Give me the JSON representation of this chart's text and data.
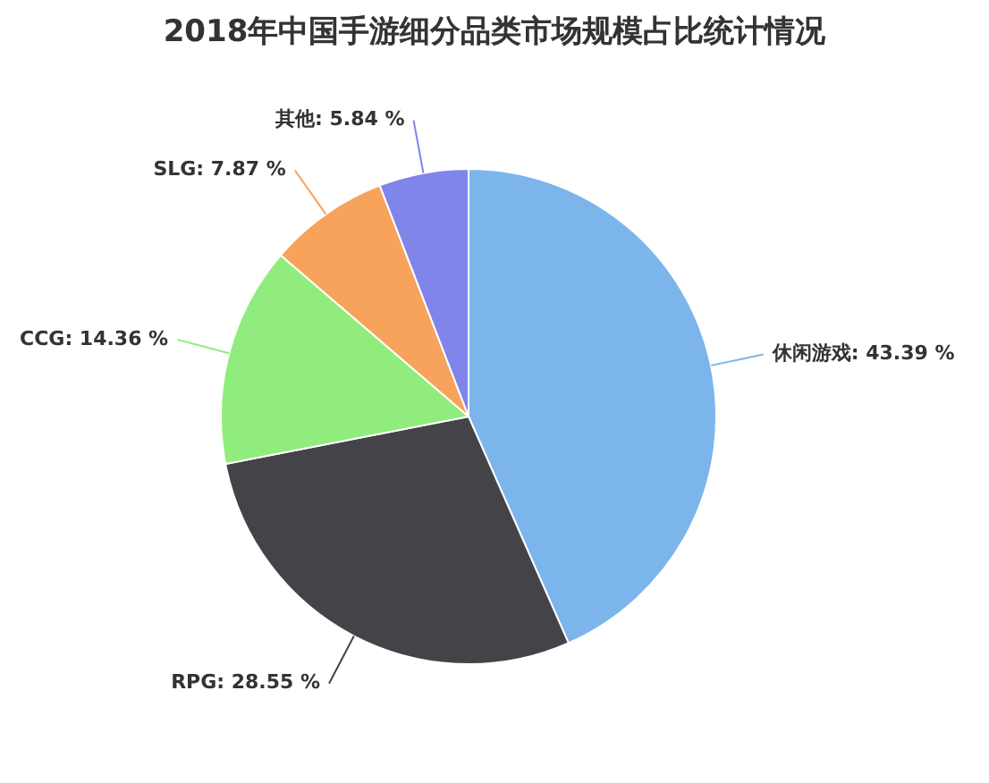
{
  "chart_data": {
    "type": "pie",
    "title": "2018年中国手游细分品类市场规模占比统计情况",
    "categories": [
      "休闲游戏",
      "RPG",
      "CCG",
      "SLG",
      "其他"
    ],
    "values": [
      43.39,
      28.55,
      14.36,
      7.87,
      5.84
    ],
    "colors": [
      "#7cb5ec",
      "#434348",
      "#90ed7d",
      "#f7a35c",
      "#8085e9"
    ],
    "value_labels": [
      "43.39 %",
      "28.55 %",
      "14.36 %",
      "7.87 %",
      "5.84 %"
    ]
  }
}
